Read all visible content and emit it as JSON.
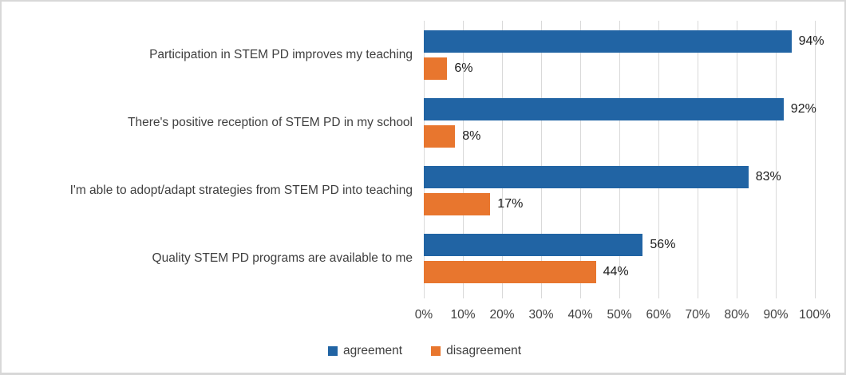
{
  "chart_data": {
    "type": "bar",
    "orientation": "horizontal",
    "title": "",
    "categories": [
      "Participation in STEM PD improves my teaching",
      "There's positive reception of STEM PD in my school",
      "I'm able to adopt/adapt strategies from STEM PD into teaching",
      "Quality STEM PD programs are available to me"
    ],
    "series": [
      {
        "name": "agreement",
        "color": "#2164A4",
        "values": [
          94,
          92,
          83,
          56
        ]
      },
      {
        "name": "disagreement",
        "color": "#E8762E",
        "values": [
          6,
          8,
          17,
          44
        ]
      }
    ],
    "value_label_suffix": "%",
    "x_ticks": [
      "0%",
      "10%",
      "20%",
      "30%",
      "40%",
      "50%",
      "60%",
      "70%",
      "80%",
      "90%",
      "100%"
    ],
    "xlim": [
      0,
      100
    ],
    "grid": "vertical-gridlines",
    "legend_position": "bottom"
  },
  "style": {
    "grid_color": "#D9D9D9",
    "frame_border_color": "#D8D8D8",
    "category_text_color": "#3F3F3F",
    "axis_text_color": "#404040",
    "value_text_color": "#1A1A1A",
    "background": "#FFFFFF"
  }
}
